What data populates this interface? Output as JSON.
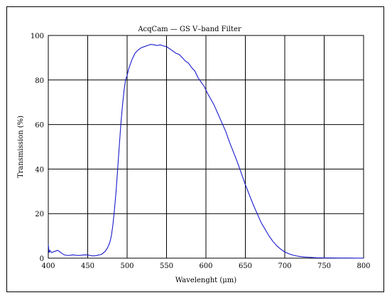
{
  "chart_data": {
    "type": "line",
    "title": "AcqCam — GS V–band Filter",
    "xlabel": "Wavelenght (μm)",
    "ylabel": "Transmission (%)",
    "xlim": [
      400,
      800
    ],
    "ylim": [
      0,
      100
    ],
    "x_ticks": [
      "400",
      "450",
      "500",
      "550",
      "600",
      "650",
      "700",
      "750",
      "800"
    ],
    "y_ticks": [
      "0",
      "20",
      "40",
      "60",
      "80",
      "100"
    ],
    "grid": true,
    "line_color": "#1a1acc",
    "series": [
      {
        "x": [
          400,
          401,
          402,
          404,
          408,
          412,
          416,
          420,
          424,
          428,
          432,
          436,
          440,
          444,
          448,
          452,
          456,
          460,
          464,
          468,
          472,
          475,
          478,
          480,
          482,
          484,
          486,
          488,
          490,
          492,
          494,
          496,
          498,
          500,
          502,
          504,
          506,
          508,
          510,
          514,
          518,
          522,
          526,
          530,
          534,
          538,
          542,
          546,
          550,
          554,
          558,
          562,
          566,
          570,
          574,
          578,
          582,
          586,
          590,
          594,
          598,
          602,
          606,
          610,
          615,
          620,
          625,
          630,
          635,
          640,
          645,
          650,
          655,
          660,
          665,
          670,
          675,
          680,
          685,
          690,
          695,
          700,
          705,
          710,
          715,
          720,
          725,
          730,
          735,
          740,
          750,
          760,
          770,
          780,
          790,
          800
        ],
        "y": [
          6,
          2.5,
          3.5,
          2.5,
          3,
          3.5,
          2.5,
          1.5,
          1.2,
          1.3,
          1.5,
          1.2,
          1.2,
          1.4,
          1.5,
          1.3,
          1,
          1.1,
          1.4,
          1.8,
          3,
          4.5,
          7,
          10,
          15,
          22,
          30,
          40,
          50,
          60,
          68,
          75,
          80,
          82,
          85,
          87,
          89,
          90.5,
          92,
          93.5,
          94.5,
          95,
          95.5,
          96,
          95.8,
          95.5,
          95.8,
          95.3,
          95,
          94,
          93,
          92,
          91.5,
          90,
          88.5,
          87.5,
          85.5,
          84,
          81,
          79,
          77,
          74,
          71.5,
          69,
          65,
          61,
          57,
          52,
          47.5,
          43,
          38,
          33,
          28.5,
          24,
          20,
          16,
          13,
          10,
          7.5,
          5.5,
          4,
          2.8,
          2,
          1.4,
          1,
          0.7,
          0.5,
          0.4,
          0.3,
          0.2,
          0.1,
          0.1,
          0.05,
          0.05,
          0.02,
          0.02
        ]
      }
    ]
  }
}
